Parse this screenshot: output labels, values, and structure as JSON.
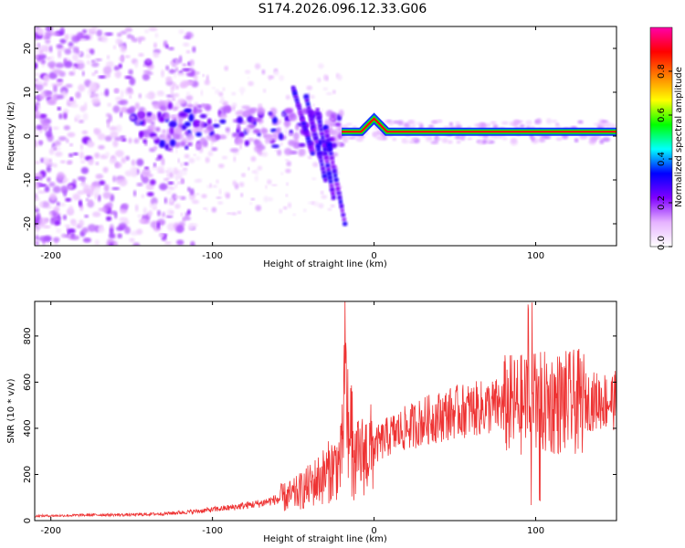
{
  "title": "S174.2026.096.12.33.G06",
  "chart_data": [
    {
      "type": "heatmap",
      "name": "spectrogram",
      "xlabel": "Height of straight line (km)",
      "ylabel": "Frequency (Hz)",
      "xlim": [
        -210,
        150
      ],
      "ylim": [
        -25,
        25
      ],
      "xticks": [
        -200,
        -100,
        0,
        100
      ],
      "yticks": [
        -20,
        -10,
        0,
        10,
        20
      ],
      "colorbar": {
        "label": "Normalized spectral amplitude",
        "range": [
          0,
          1
        ],
        "ticks": [
          0.0,
          0.2,
          0.4,
          0.6,
          0.8
        ],
        "colors": [
          "#ffffff",
          "#e6b3ff",
          "#8000ff",
          "#0000ff",
          "#00ffff",
          "#00ff00",
          "#ffff00",
          "#ff8000",
          "#ff0000",
          "#ff00aa"
        ]
      },
      "features": {
        "scattered_noise_x_range": [
          -210,
          -120
        ],
        "blob_band_x_range": [
          -150,
          -20
        ],
        "steady_tone_x_range": [
          -20,
          150
        ],
        "steady_tone_freq_hz": 1,
        "feature_peak_x": 0,
        "feature_peak_freq_hz": 4
      }
    },
    {
      "type": "line",
      "name": "snr",
      "xlabel": "Height of straight line (km)",
      "ylabel": "SNR (10 * v/v)",
      "xlim": [
        -210,
        150
      ],
      "ylim": [
        0,
        950
      ],
      "xticks": [
        -200,
        -100,
        0,
        100
      ],
      "yticks": [
        0,
        200,
        400,
        600,
        800
      ],
      "color": "#ee3333",
      "series": [
        {
          "name": "SNR",
          "x": [
            -210,
            -190,
            -170,
            -150,
            -130,
            -110,
            -90,
            -70,
            -50,
            -40,
            -30,
            -20,
            -18,
            -15,
            -10,
            0,
            10,
            20,
            30,
            40,
            50,
            60,
            70,
            80,
            90,
            100,
            110,
            120,
            130,
            140,
            150
          ],
          "values": [
            20,
            22,
            25,
            25,
            30,
            40,
            55,
            75,
            110,
            150,
            200,
            260,
            680,
            230,
            270,
            320,
            370,
            400,
            430,
            450,
            470,
            480,
            490,
            500,
            500,
            505,
            510,
            510,
            515,
            520,
            520
          ]
        }
      ]
    }
  ]
}
